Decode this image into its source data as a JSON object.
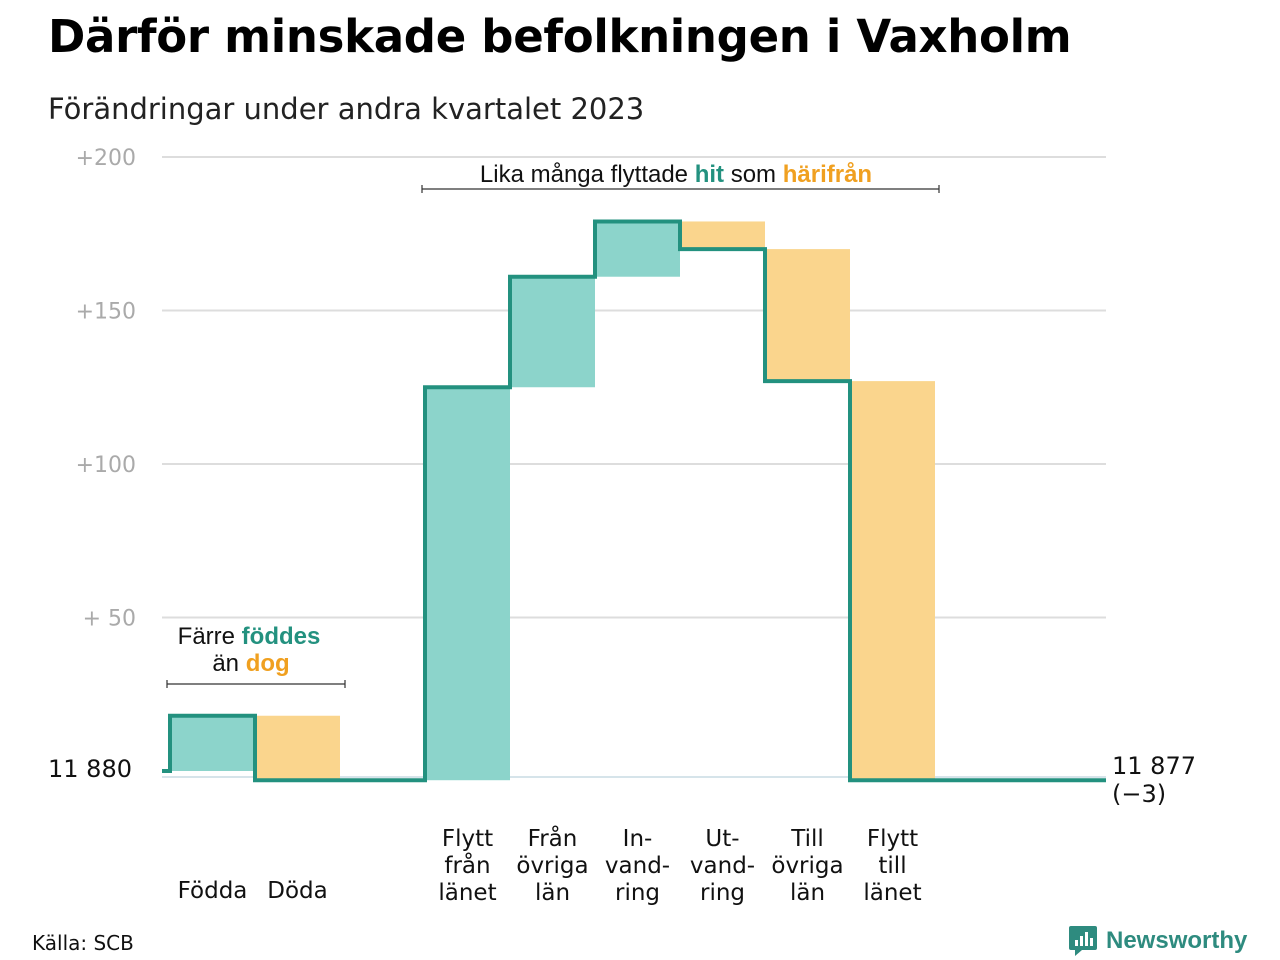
{
  "title": "Därför minskade befolkningen i Vaxholm",
  "subtitle": "Förändringar under andra kvartalet 2023",
  "source": "Källa: SCB",
  "brand": "Newsworthy",
  "colors": {
    "increase": "#8cd4cb",
    "decrease": "#fad58d",
    "line": "#23917f",
    "accent_in": "#23917f",
    "accent_out": "#f0a020",
    "grid": "#dddddd",
    "tick": "#aaaaaa"
  },
  "chart_data": {
    "type": "waterfall",
    "start_label": "11  880",
    "end_label": "11 877",
    "end_change": "(−3)",
    "y_ticks": [
      "+200",
      "+150",
      "+100",
      "+  50"
    ],
    "y_tick_values": [
      200,
      150,
      100,
      50
    ],
    "ylim": [
      -3,
      200
    ],
    "steps": [
      {
        "label": [
          "Födda"
        ],
        "value": 18,
        "kind": "in"
      },
      {
        "label": [
          "Döda"
        ],
        "value": -21,
        "kind": "out"
      },
      {
        "label": [
          "Flytt",
          "från",
          "länet"
        ],
        "value": 128,
        "kind": "in"
      },
      {
        "label": [
          "Från",
          "övriga",
          "län"
        ],
        "value": 36,
        "kind": "in"
      },
      {
        "label": [
          "In-",
          "vand-",
          "ring"
        ],
        "value": 18,
        "kind": "in"
      },
      {
        "label": [
          "Ut-",
          "vand-",
          "ring"
        ],
        "value": -9,
        "kind": "out"
      },
      {
        "label": [
          "Till",
          "övriga",
          "län"
        ],
        "value": -43,
        "kind": "out"
      },
      {
        "label": [
          "Flytt",
          "till",
          "länet"
        ],
        "value": -130,
        "kind": "out"
      }
    ],
    "annotations": [
      {
        "parts": [
          {
            "text": "Lika många flyttade ",
            "style": "plain"
          },
          {
            "text": "hit",
            "style": "in"
          },
          {
            "text": "  som ",
            "style": "plain"
          },
          {
            "text": "härifrån",
            "style": "out"
          }
        ]
      },
      {
        "parts": [
          {
            "text": "Färre ",
            "style": "plain"
          },
          {
            "text": "föddes",
            "style": "in"
          }
        ]
      },
      {
        "parts": [
          {
            "text": "än ",
            "style": "plain"
          },
          {
            "text": "dog",
            "style": "out"
          }
        ]
      }
    ]
  }
}
